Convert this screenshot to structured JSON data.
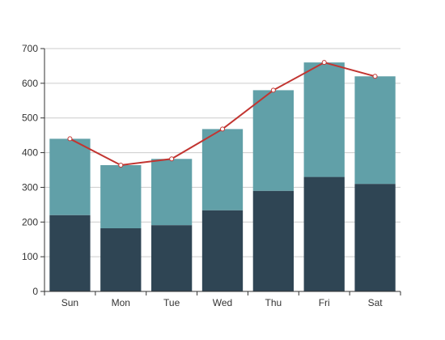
{
  "chart_data": {
    "type": "bar",
    "stacked": true,
    "categories": [
      "Sun",
      "Mon",
      "Tue",
      "Wed",
      "Thu",
      "Fri",
      "Sat"
    ],
    "series": [
      {
        "type": "bar",
        "values": [
          220,
          182,
          191,
          234,
          290,
          330,
          310
        ],
        "color": "#2f4554"
      },
      {
        "type": "bar",
        "values": [
          220,
          182,
          191,
          234,
          290,
          330,
          310
        ],
        "color": "#61a0a8"
      },
      {
        "type": "line",
        "values": [
          440,
          364,
          382,
          468,
          580,
          660,
          620
        ],
        "color": "#c23531"
      }
    ],
    "yticks": [
      0,
      100,
      200,
      300,
      400,
      500,
      600,
      700
    ],
    "ylim": [
      0,
      700
    ],
    "grid": true,
    "legend": "none"
  }
}
